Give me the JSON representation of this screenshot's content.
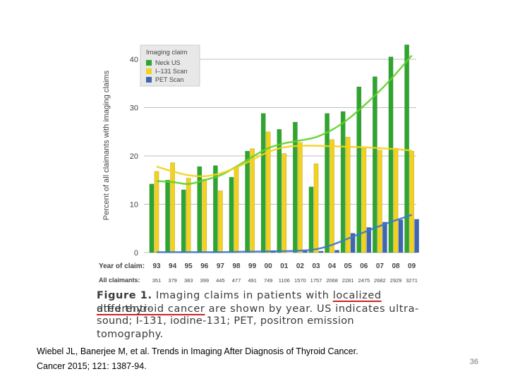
{
  "chart_data": {
    "type": "bar",
    "title": "Imaging claim",
    "ylabel": "Percent of all claimants with imaging claims",
    "ylim": [
      0,
      42
    ],
    "yticks": [
      0,
      10,
      20,
      30,
      40
    ],
    "x_row_label": "Year of claim:",
    "categories": [
      "93",
      "94",
      "95",
      "96",
      "97",
      "98",
      "99",
      "00",
      "01",
      "02",
      "03",
      "04",
      "05",
      "06",
      "07",
      "08",
      "09"
    ],
    "claimants_row_label": "All claimants:",
    "claimants": [
      "351",
      "379",
      "383",
      "399",
      "445",
      "477",
      "491",
      "749",
      "1106",
      "1570",
      "1757",
      "2068",
      "2281",
      "2475",
      "2682",
      "2929",
      "3271"
    ],
    "series": [
      {
        "name": "Neck US",
        "color": "#2ea62e",
        "trend_color": "#5fd12a",
        "values": [
          14.2,
          15.0,
          13.0,
          17.8,
          18.0,
          15.6,
          21.0,
          28.8,
          25.5,
          27.0,
          13.6,
          28.8,
          29.2,
          34.3,
          36.4,
          40.5,
          43.0
        ],
        "trend": [
          14.8,
          14.6,
          14.2,
          15.0,
          16.0,
          17.8,
          19.8,
          21.6,
          22.6,
          23.2,
          23.9,
          25.4,
          27.6,
          30.4,
          33.5,
          37.0,
          40.8
        ]
      },
      {
        "name": "I–131 Scan",
        "color": "#f2d21c",
        "trend_color": "#f4d21a",
        "values": [
          16.8,
          18.6,
          15.4,
          15.2,
          12.8,
          17.6,
          21.5,
          25.0,
          20.5,
          22.8,
          18.4,
          23.4,
          23.9,
          21.6,
          21.2,
          21.6,
          21.0
        ],
        "trend": [
          17.8,
          16.8,
          16.0,
          15.8,
          16.4,
          17.6,
          19.2,
          20.8,
          21.8,
          22.1,
          22.1,
          22.0,
          21.9,
          21.8,
          21.6,
          21.4,
          21.1
        ]
      },
      {
        "name": "PET Scan",
        "color": "#3e66b5",
        "trend_color": "#3d78c9",
        "values": [
          0,
          0,
          0,
          0,
          0,
          0,
          0,
          0.4,
          0,
          0.4,
          0.3,
          0.5,
          4.0,
          5.2,
          6.3,
          6.8,
          6.9
        ],
        "trend": [
          0.1,
          0.1,
          0.1,
          0.1,
          0.1,
          0.15,
          0.2,
          0.25,
          0.3,
          0.4,
          0.7,
          1.6,
          2.9,
          4.2,
          5.5,
          6.7,
          7.8
        ]
      }
    ],
    "legend_title": "Imaging claim",
    "legend_position": "top-left"
  },
  "caption": {
    "figure_label": "Figure 1.",
    "line1_pre": " Imaging claims in patients with ",
    "line1_ul": "localized differenti-",
    "line2_ul": "ated thyroid cancer",
    "line2_mid": " are shown by year. ",
    "line2_ul2": "US indicates ultra-",
    "line3": "sound; I-131, iodine-131; PET, positron emission tomography."
  },
  "citation": {
    "line1": "Wiebel JL, Banerjee M, et al. Trends in Imaging After Diagnosis of Thyroid Cancer.",
    "line2": "Cancer 2015; 121: 1387-94."
  },
  "slide_number": "36",
  "colors": {
    "grid": "#bfbfbf",
    "axis_text": "#444444",
    "caption_underline": "#d02020"
  }
}
